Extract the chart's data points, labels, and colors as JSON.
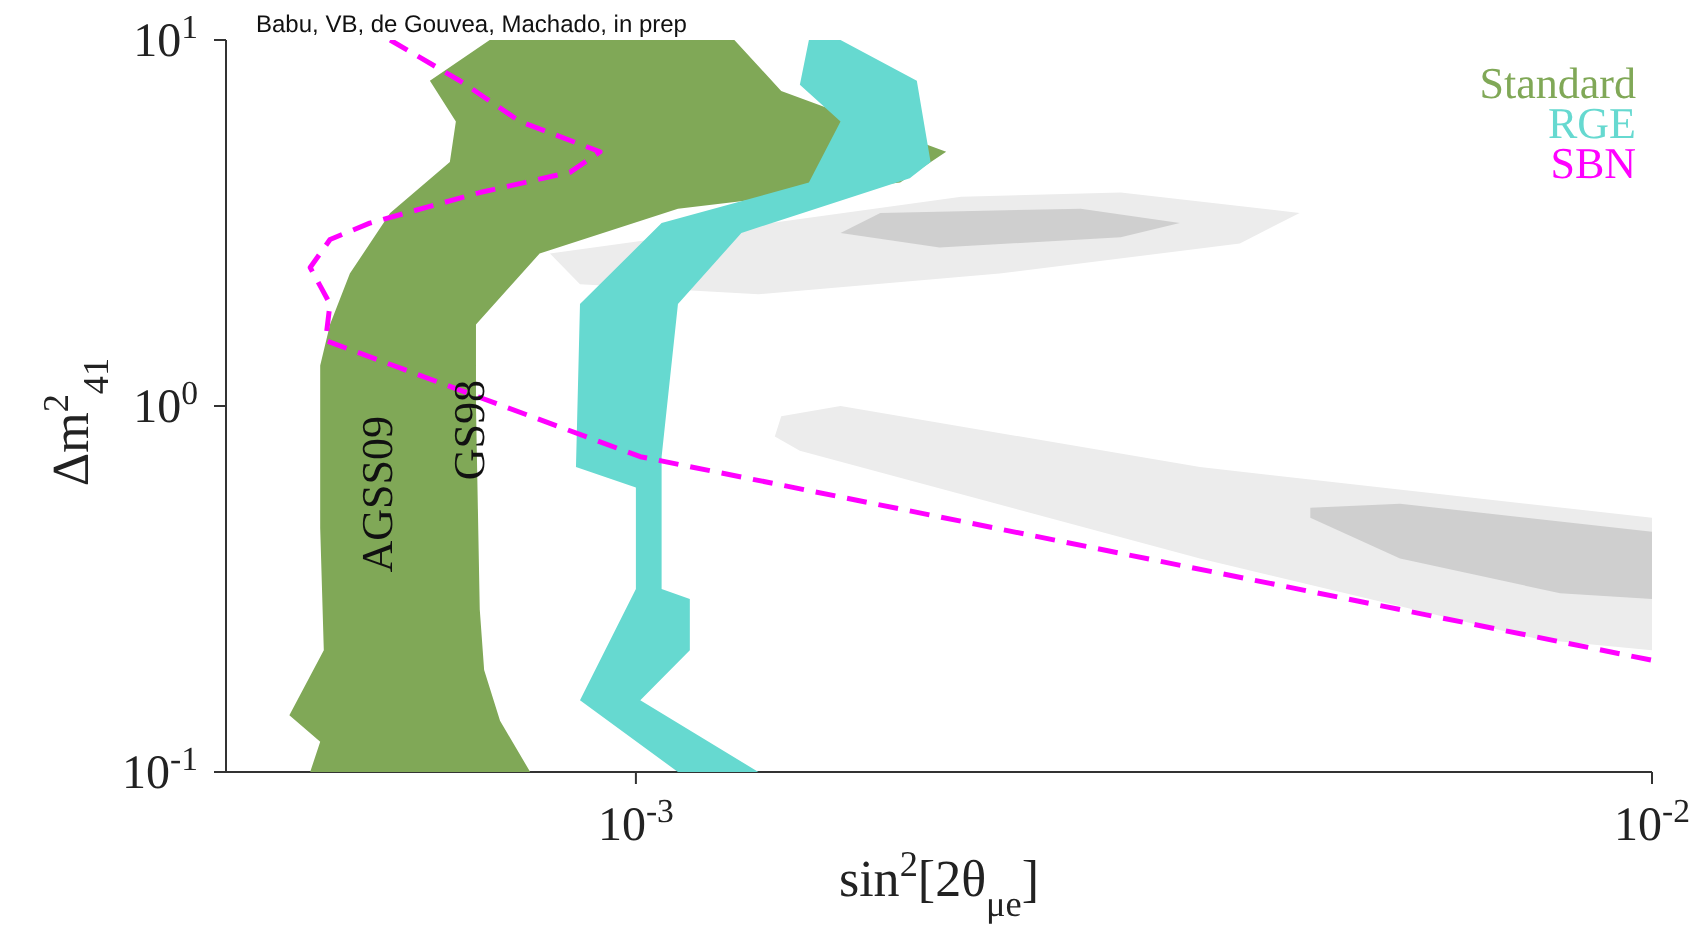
{
  "chart_data": {
    "type": "area",
    "xlabel": "sin$^{2}$[2θ$_{μe}$]",
    "ylabel": "Δm$^{2}$$_{41}$",
    "annotations": [
      "Babu, VB, de Gouvea, Machado, in prep",
      "AGSS09",
      "GS98"
    ],
    "log": "xy",
    "grid": false,
    "legend": "top right",
    "xlim": [
      0.000395,
      0.01
    ],
    "ylim": [
      0.1,
      10
    ],
    "xticks": [
      {
        "value": 0.001,
        "label": "10$^{-3}$"
      },
      {
        "value": 0.01,
        "label": "10$^{-2}$"
      }
    ],
    "yticks": [
      {
        "value": 0.1,
        "label": "10$^{-1}$"
      },
      {
        "value": 1,
        "label": "10$^{0}$"
      },
      {
        "value": 10,
        "label": "10$^{1}$"
      }
    ],
    "series": [
      {
        "color": "#ececec",
        "x": [
          0.000823,
          0.00209,
          0.003,
          0.0045,
          0.00393,
          0.00228,
          0.00132,
          0.000881
        ],
        "values": [
          2.61,
          3.73,
          3.83,
          3.37,
          2.78,
          2.3,
          2.02,
          2.15
        ]
      },
      {
        "color": "#ececec",
        "x": [
          0.00139,
          0.00159,
          0.00359,
          0.01,
          0.01,
          0.00776,
          0.00359,
          0.00145,
          0.00137
        ],
        "values": [
          0.938,
          1.0,
          0.681,
          0.495,
          0.215,
          0.23,
          0.383,
          0.755,
          0.825
        ]
      },
      {
        "color": "#cfcfcf",
        "x": [
          0.00159,
          0.00174,
          0.00274,
          0.00343,
          0.003,
          0.00199
        ],
        "values": [
          2.97,
          3.37,
          3.46,
          3.16,
          2.89,
          2.71
        ]
      },
      {
        "color": "#cfcfcf",
        "x": [
          0.00461,
          0.00565,
          0.01,
          0.01,
          0.00812,
          0.00565,
          0.00461
        ],
        "values": [
          0.527,
          0.541,
          0.453,
          0.297,
          0.308,
          0.383,
          0.495
        ]
      },
      {
        "name": "Standard",
        "color": "#80a857",
        "x": [
          0.000718,
          0.000627,
          0.000665,
          0.000656,
          0.000573,
          0.000523,
          0.0005,
          0.000489,
          0.000489,
          0.000493,
          0.000456,
          0.000489,
          0.000478,
          0.000787,
          0.000735,
          0.000709,
          0.000702,
          0.000696,
          0.000696,
          0.000804,
          0.0011,
          0.00182,
          0.00202,
          0.00139,
          0.00125
        ],
        "values": [
          10,
          7.74,
          5.99,
          4.64,
          3.37,
          2.3,
          1.67,
          1.29,
          0.464,
          0.215,
          0.143,
          0.121,
          0.1,
          0.1,
          0.138,
          0.19,
          0.278,
          1.0,
          1.67,
          2.61,
          3.46,
          4.08,
          4.95,
          7.26,
          10
        ]
      },
      {
        "name": "RGE",
        "color": "#66d9d0",
        "x": [
          0.00148,
          0.00145,
          0.00159,
          0.00148,
          0.00106,
          0.000881,
          0.000873,
          0.001,
          0.001,
          0.000881,
          0.0011,
          0.00132,
          0.00101,
          0.00113,
          0.00113,
          0.00106,
          0.00106,
          0.0011,
          0.00127,
          0.00186,
          0.00195,
          0.00189,
          0.00159
        ],
        "values": [
          10,
          7.55,
          5.99,
          4.08,
          3.16,
          1.9,
          0.681,
          0.599,
          0.316,
          0.157,
          0.1,
          0.1,
          0.157,
          0.215,
          0.297,
          0.316,
          0.727,
          1.9,
          2.97,
          4.19,
          4.64,
          7.74,
          10
        ]
      },
      {
        "name": "SBN",
        "type": "line",
        "line_style": "dashed",
        "color": "#ff00ff",
        "x": [
          0.000573,
          0.000671,
          0.000769,
          0.000922,
          0.000861,
          0.000702,
          0.000547,
          0.0005,
          0.000478,
          0.0005,
          0.000495,
          0.00101,
          0.01
        ],
        "values": [
          10,
          7.74,
          5.99,
          4.95,
          4.35,
          3.83,
          3.16,
          2.85,
          2.39,
          1.9,
          1.51,
          0.727,
          0.202
        ]
      }
    ]
  }
}
